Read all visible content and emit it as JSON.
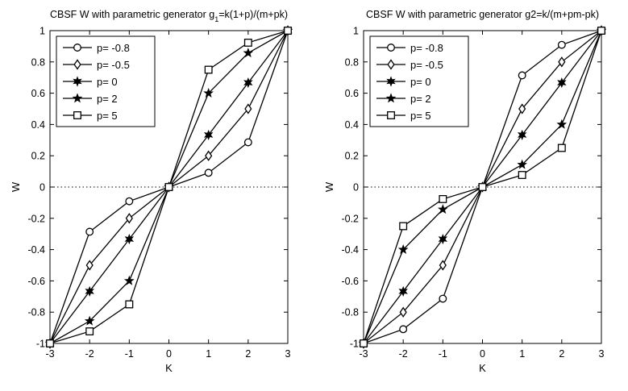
{
  "chart_data": [
    {
      "type": "line",
      "title_prefix": "CBSF W with parametric generator g",
      "title_sub": "1",
      "title_suffix": "=k(1+p)/(m+pk)",
      "xlabel": "K",
      "ylabel": "W",
      "xlim": [
        -3,
        3
      ],
      "ylim": [
        -1,
        1
      ],
      "xticks": [
        "-3",
        "-2",
        "-1",
        "0",
        "1",
        "2",
        "3"
      ],
      "yticks": [
        "-1",
        "-0.8",
        "-0.6",
        "-0.4",
        "-0.2",
        "0",
        "0.2",
        "0.4",
        "0.6",
        "0.8",
        "1"
      ],
      "grid": false,
      "legend_position": "top-left",
      "x": [
        -3,
        -2,
        -1,
        0,
        1,
        2,
        3
      ],
      "series": [
        {
          "name": "p= -0.8",
          "marker": "circle",
          "values": [
            -1,
            -0.286,
            -0.091,
            0,
            0.091,
            0.286,
            1
          ]
        },
        {
          "name": "p= -0.5",
          "marker": "diamond",
          "values": [
            -1,
            -0.5,
            -0.2,
            0,
            0.2,
            0.5,
            1
          ]
        },
        {
          "name": "p= 0",
          "marker": "hexagram",
          "values": [
            -1,
            -0.667,
            -0.333,
            0,
            0.333,
            0.667,
            1
          ]
        },
        {
          "name": "p= 2",
          "marker": "star",
          "values": [
            -1,
            -0.857,
            -0.6,
            0,
            0.6,
            0.857,
            1
          ]
        },
        {
          "name": "p= 5",
          "marker": "square",
          "values": [
            -1,
            -0.923,
            -0.75,
            0,
            0.75,
            0.923,
            1
          ]
        }
      ]
    },
    {
      "type": "line",
      "title_prefix": "CBSF W with parametric generator g2=k/(m+pm-pk)",
      "title_sub": "",
      "title_suffix": "",
      "xlabel": "K",
      "ylabel": "W",
      "xlim": [
        -3,
        3
      ],
      "ylim": [
        -1,
        1
      ],
      "xticks": [
        "-3",
        "-2",
        "-1",
        "0",
        "1",
        "2",
        "3"
      ],
      "yticks": [
        "-1",
        "-0.8",
        "-0.6",
        "-0.4",
        "-0.2",
        "0",
        "0.2",
        "0.4",
        "0.6",
        "0.8",
        "1"
      ],
      "grid": false,
      "legend_position": "top-left",
      "x": [
        -3,
        -2,
        -1,
        0,
        1,
        2,
        3
      ],
      "series": [
        {
          "name": "p= -0.8",
          "marker": "circle",
          "values": [
            -1,
            -0.909,
            -0.714,
            0,
            0.714,
            0.909,
            1
          ]
        },
        {
          "name": "p= -0.5",
          "marker": "diamond",
          "values": [
            -1,
            -0.8,
            -0.5,
            0,
            0.5,
            0.8,
            1
          ]
        },
        {
          "name": "p= 0",
          "marker": "hexagram",
          "values": [
            -1,
            -0.667,
            -0.333,
            0,
            0.333,
            0.667,
            1
          ]
        },
        {
          "name": "p= 2",
          "marker": "star",
          "values": [
            -1,
            -0.4,
            -0.143,
            0,
            0.143,
            0.4,
            1
          ]
        },
        {
          "name": "p= 5",
          "marker": "square",
          "values": [
            -1,
            -0.25,
            -0.077,
            0,
            0.077,
            0.25,
            1
          ]
        }
      ]
    }
  ]
}
